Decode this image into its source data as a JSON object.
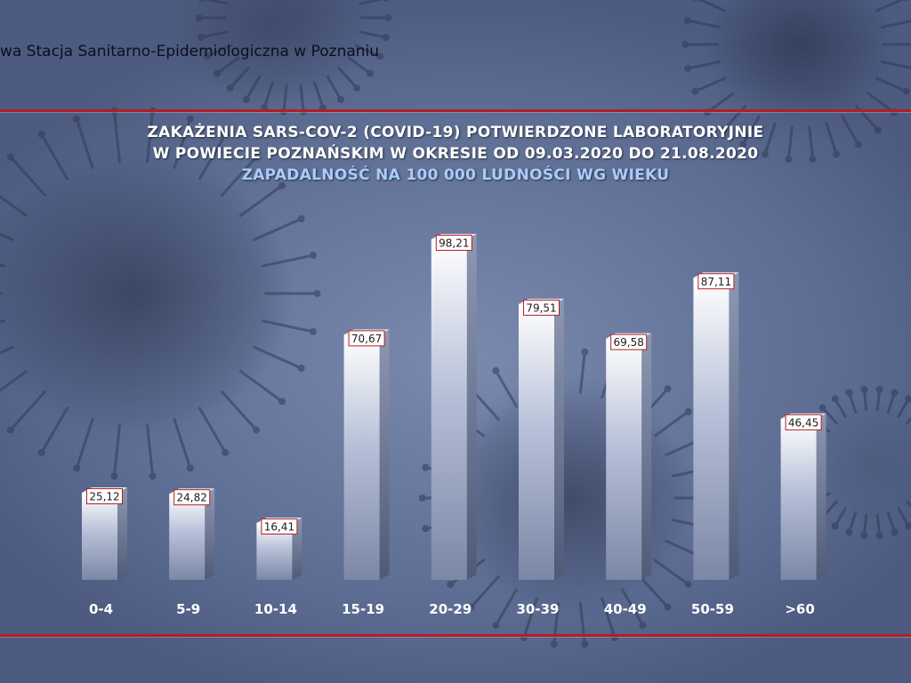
{
  "header": {
    "organization": "wa Stacja Sanitarno-Epidemiologiczna w Poznaniu"
  },
  "chart_data": {
    "type": "bar",
    "title": "ZAKAŻENIA SARS-COV-2 (COVID-19) POTWIERDZONE LABORATORYJNIE",
    "title_line2": "W POWIECIE POZNAŃSKIM W OKRESIE OD 09.03.2020 DO 21.08.2020",
    "subtitle": "ZAPADALNOŚĆ NA 100 000 LUDNOŚCI WG WIEKU",
    "categories": [
      "0-4",
      "5-9",
      "10-14",
      "15-19",
      "20-29",
      "30-39",
      "40-49",
      "50-59",
      ">60"
    ],
    "values": [
      25.12,
      24.82,
      16.41,
      70.67,
      98.21,
      79.51,
      69.58,
      87.11,
      46.45
    ],
    "value_labels": [
      "25,12",
      "24,82",
      "16,41",
      "70,67",
      "98,21",
      "79,51",
      "69,58",
      "87,11",
      "46,45"
    ],
    "ylim": [
      0,
      100
    ],
    "grid": false,
    "legend": "none",
    "colors": {
      "bar_front_top": "#ffffff",
      "bar_front_bottom": "#7b87a6",
      "bar_side": "#4f5a76",
      "label_border": "#b21e23",
      "rule": "#b21e23",
      "subtitle": "#a9ccff"
    }
  }
}
